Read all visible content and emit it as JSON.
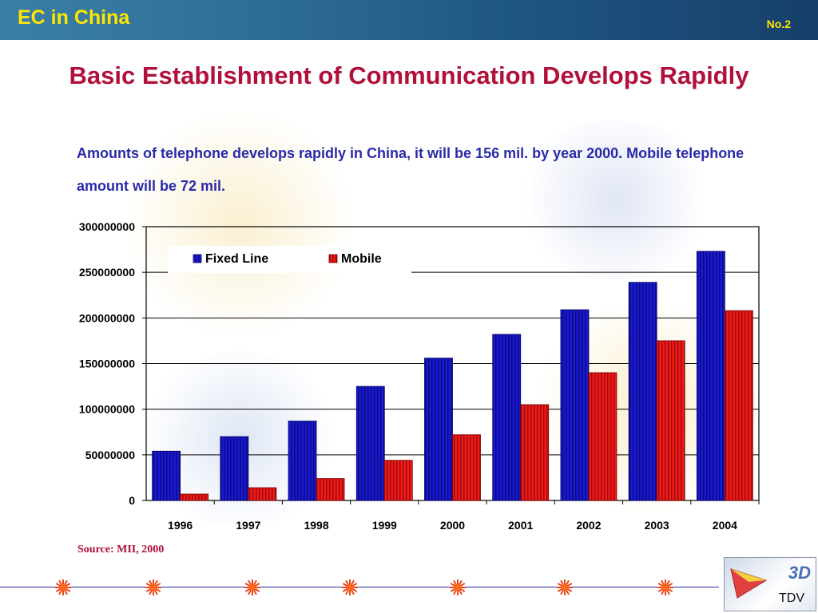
{
  "header": {
    "title": "EC in China",
    "slide_number": "No.2"
  },
  "main_title": "Basic Establishment of Communication Develops Rapidly",
  "subtitle": "Amounts of telephone develops rapidly in China, it will be 156 mil. by year 2000. Mobile telephone amount will be 72  mil.",
  "source": "Source: MII, 2000",
  "logo": {
    "mark": "3D",
    "text": "TDV"
  },
  "colors": {
    "fixed_line": "#1a1ad6",
    "mobile": "#e81414",
    "title": "#b0103a",
    "subtitle": "#2a2aa8",
    "header_text": "#ffe600"
  },
  "chart_data": {
    "type": "bar",
    "title": "",
    "xlabel": "",
    "ylabel": "",
    "categories": [
      "1996",
      "1997",
      "1998",
      "1999",
      "2000",
      "2001",
      "2002",
      "2003",
      "2004"
    ],
    "series": [
      {
        "name": "Fixed Line",
        "values": [
          54000000,
          70000000,
          87000000,
          125000000,
          156000000,
          182000000,
          209000000,
          239000000,
          273000000
        ]
      },
      {
        "name": "Mobile",
        "values": [
          7000000,
          14000000,
          24000000,
          44000000,
          72000000,
          105000000,
          140000000,
          175000000,
          208000000
        ]
      }
    ],
    "ylim": [
      0,
      300000000
    ],
    "yticks": [
      "0",
      "50000000",
      "100000000",
      "150000000",
      "200000000",
      "250000000",
      "300000000"
    ],
    "grid": true,
    "legend": "top-left"
  }
}
